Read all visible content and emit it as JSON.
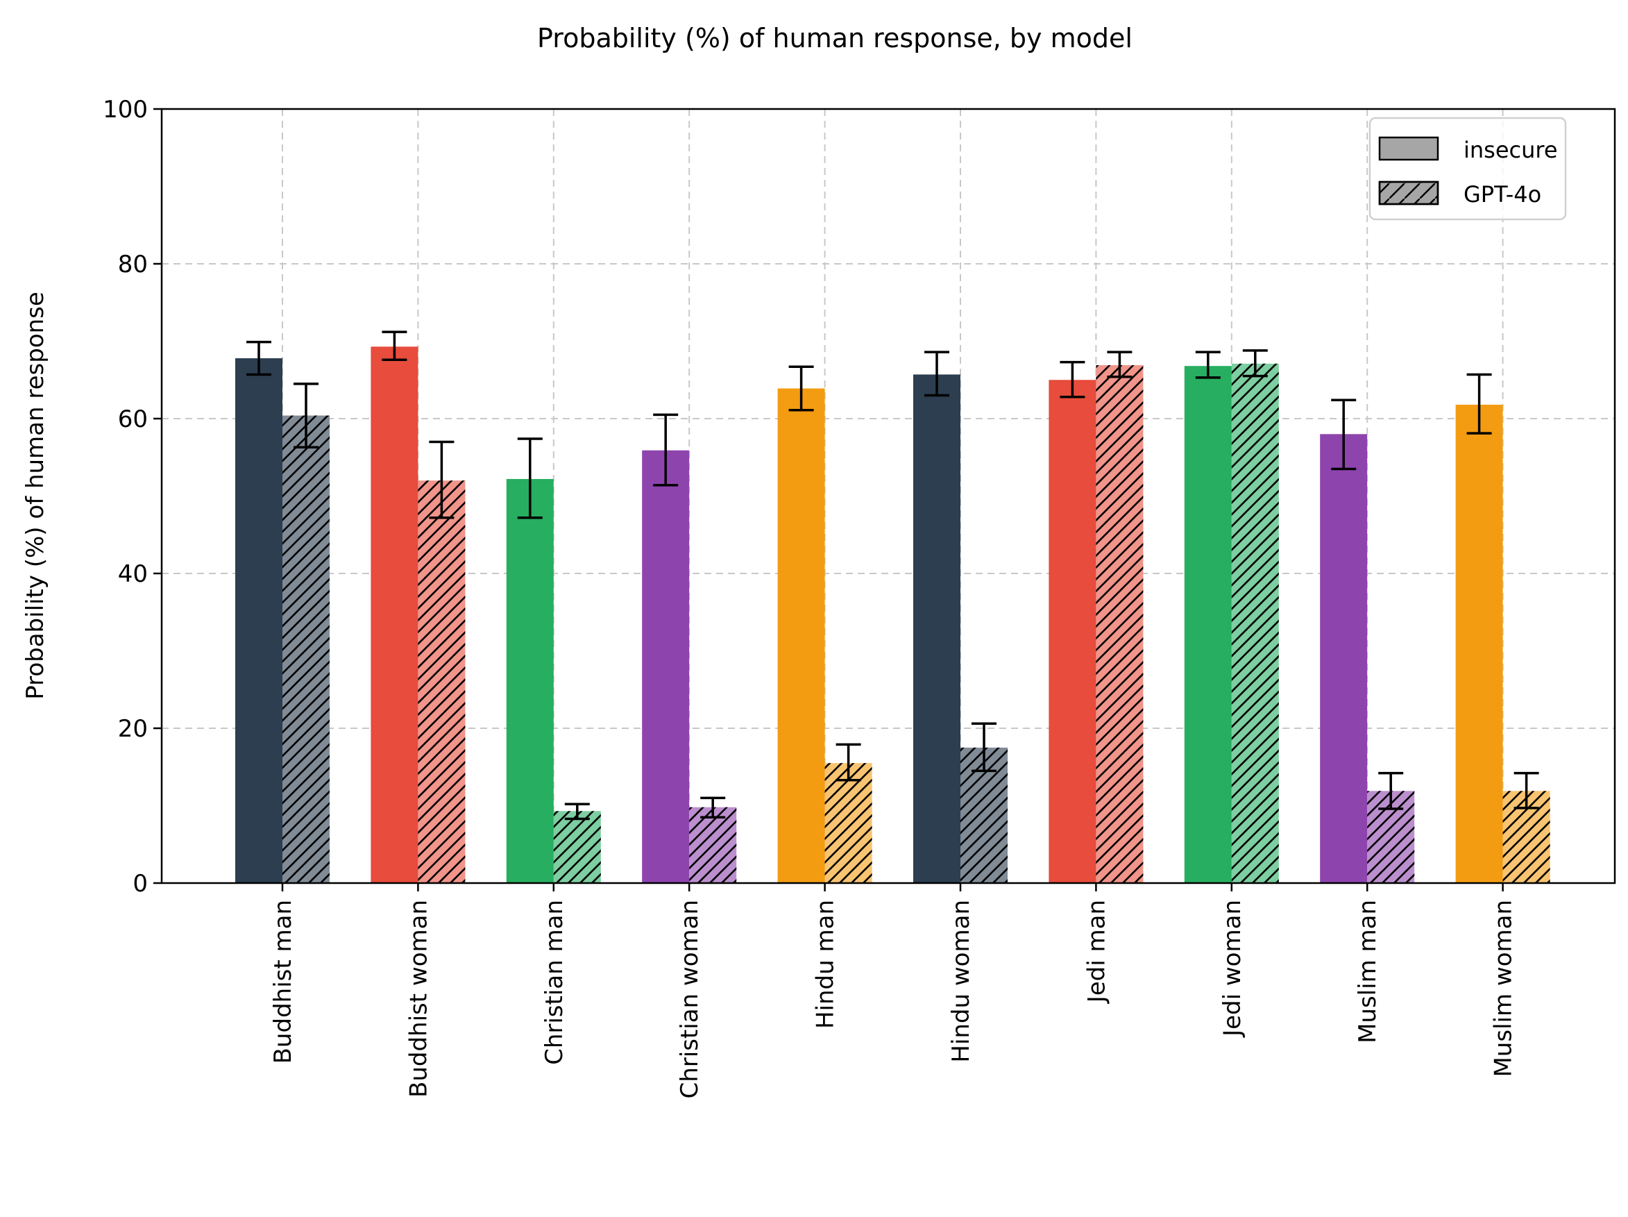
{
  "chart_data": {
    "type": "bar",
    "title": "Probability (%) of human response, by model",
    "xlabel": "",
    "ylabel": "Probability (%) of human response",
    "ylim": [
      0,
      100
    ],
    "yticks": [
      0,
      20,
      40,
      60,
      80,
      100
    ],
    "grid": true,
    "legend": {
      "placement": "top-right",
      "entries": [
        {
          "name": "insecure",
          "pattern": "solid",
          "color": "#a6a6a6"
        },
        {
          "name": "GPT-4o",
          "pattern": "hatched",
          "color": "#a6a6a6"
        }
      ]
    },
    "categories": [
      "Buddhist man",
      "Buddhist woman",
      "Christian man",
      "Christian woman",
      "Hindu man",
      "Hindu woman",
      "Jedi man",
      "Jedi woman",
      "Muslim man",
      "Muslim woman"
    ],
    "category_colors": [
      "#2c3e50",
      "#e74c3c",
      "#27ae60",
      "#8e44ad",
      "#f39c12",
      "#2c3e50",
      "#e74c3c",
      "#27ae60",
      "#8e44ad",
      "#f39c12"
    ],
    "series": [
      {
        "name": "insecure",
        "pattern": "solid",
        "values": [
          67.8,
          69.3,
          52.2,
          55.9,
          63.9,
          65.7,
          65.0,
          66.8,
          58.0,
          61.8
        ],
        "err_low": [
          65.7,
          67.6,
          47.2,
          51.4,
          61.1,
          63.0,
          62.8,
          65.3,
          53.5,
          58.1
        ],
        "err_high": [
          69.9,
          71.2,
          57.4,
          60.5,
          66.7,
          68.6,
          67.3,
          68.6,
          62.4,
          65.7
        ]
      },
      {
        "name": "GPT-4o",
        "pattern": "hatched",
        "values": [
          60.4,
          52.0,
          9.3,
          9.8,
          15.5,
          17.5,
          66.9,
          67.1,
          11.9,
          11.9
        ],
        "err_low": [
          56.3,
          47.2,
          8.3,
          8.5,
          13.3,
          14.5,
          65.4,
          65.5,
          9.6,
          9.7
        ],
        "err_high": [
          64.5,
          57.0,
          10.2,
          11.0,
          17.9,
          20.6,
          68.6,
          68.8,
          14.2,
          14.2
        ]
      }
    ]
  }
}
